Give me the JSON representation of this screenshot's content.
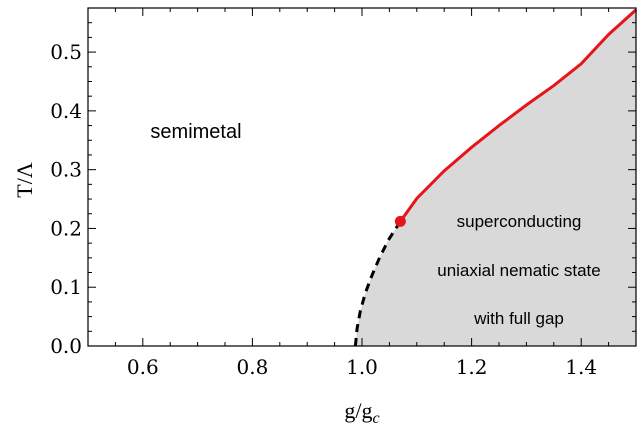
{
  "chart_data": {
    "type": "area",
    "xlim": [
      0.5,
      1.5
    ],
    "ylim": [
      0.0,
      0.575
    ],
    "xticks": [
      0.6,
      0.8,
      1.0,
      1.2,
      1.4
    ],
    "xtick_labels": [
      "0.6",
      "0.8",
      "1.0",
      "1.2",
      "1.4"
    ],
    "yticks": [
      0.0,
      0.1,
      0.2,
      0.3,
      0.4,
      0.5
    ],
    "ytick_labels": [
      "0.0",
      "0.1",
      "0.2",
      "0.3",
      "0.4",
      "0.5"
    ],
    "xlabel": {
      "main": "g/g",
      "sub": "c"
    },
    "ylabel": "T/Λ",
    "grid": false,
    "critical_point": {
      "x": 1.07,
      "y": 0.212
    },
    "series": [
      {
        "style": "dashed",
        "color": "#000000",
        "x": [
          0.988,
          0.991,
          0.997,
          1.006,
          1.018,
          1.032,
          1.048,
          1.07
        ],
        "y": [
          0.0,
          0.03,
          0.06,
          0.09,
          0.12,
          0.15,
          0.18,
          0.212
        ]
      },
      {
        "style": "solid",
        "color": "#e8141c",
        "x": [
          1.07,
          1.1,
          1.15,
          1.2,
          1.25,
          1.3,
          1.35,
          1.4,
          1.45,
          1.5
        ],
        "y": [
          0.212,
          0.251,
          0.298,
          0.338,
          0.375,
          0.41,
          0.443,
          0.48,
          0.53,
          0.572
        ]
      }
    ],
    "fill_color": "#d9d9d9",
    "annotations": {
      "semimetal": "semimetal",
      "line1": "superconducting",
      "line2": "uniaxial nematic state",
      "line3": "with full gap"
    }
  }
}
